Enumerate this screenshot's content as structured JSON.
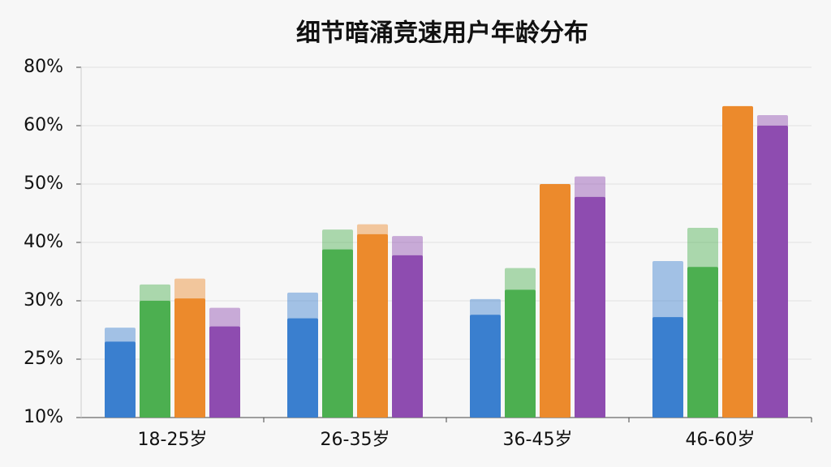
{
  "chart_data": {
    "type": "bar",
    "title": "细节暗涌竞速用户年龄分布",
    "categories": [
      "18-25岁",
      "26-35岁",
      "36-45岁",
      "46-60岁"
    ],
    "series": [
      {
        "color": "#3a7fcf",
        "values": [
          26.5,
          28.5,
          28.8,
          28.6
        ],
        "upper": [
          27.7,
          31.4,
          30.3,
          36.8
        ]
      },
      {
        "color": "#4caf50",
        "values": [
          30,
          38.8,
          31.9,
          35.8
        ],
        "upper": [
          32.8,
          42.2,
          35.6,
          42.5
        ]
      },
      {
        "color": "#ec8a2c",
        "values": [
          30.4,
          41.4,
          50,
          66.7
        ],
        "upper": [
          33.8,
          43.1,
          null,
          null
        ]
      },
      {
        "color": "#8e4cb0",
        "values": [
          27.8,
          37.8,
          47.8,
          60
        ],
        "upper": [
          29.4,
          41.1,
          51.3,
          63.6
        ]
      }
    ],
    "ylim": [
      10,
      80
    ],
    "yticks": [
      {
        "value": 10,
        "label": "10%"
      },
      {
        "value": 25,
        "label": "25%"
      },
      {
        "value": 30,
        "label": "30%"
      },
      {
        "value": 40,
        "label": "40%"
      },
      {
        "value": 50,
        "label": "50%"
      },
      {
        "value": 60,
        "label": "60%"
      },
      {
        "value": 80,
        "label": "80%"
      }
    ],
    "grid": true
  }
}
